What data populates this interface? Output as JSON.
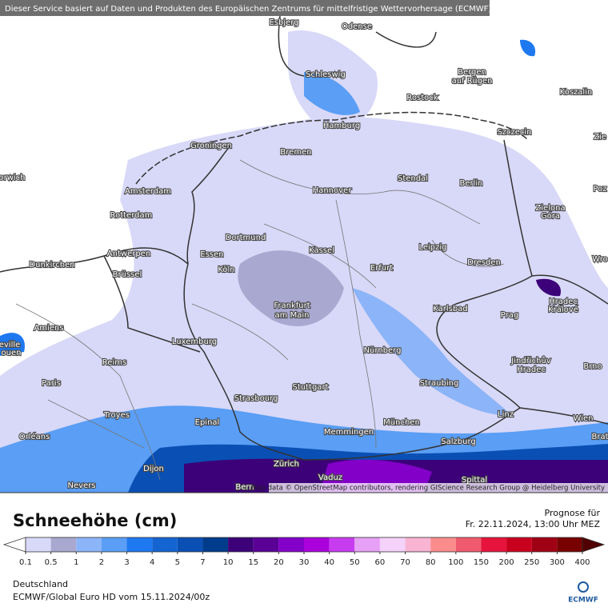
{
  "header": {
    "notice": "Dieser Service basiert auf Daten und Produkten des Europäischen Zentrums für mittelfristige Wettervorhersage (ECMWF)"
  },
  "map": {
    "cities": [
      "Esbjerg",
      "Odense",
      "Schleswig",
      "Bergen",
      "auf Rügen",
      "Koszalin",
      "Rostock",
      "Hamburg",
      "Szczecin",
      "Zie",
      "Groningen",
      "Bremen",
      "orwich",
      "Amsterdam",
      "Stendal",
      "Berlin",
      "Hannover",
      "Poz",
      "Zielona",
      "Góra",
      "Rotterdam",
      "Dortmund",
      "Leipzig",
      "Antwerpen",
      "Essen",
      "Kassel",
      "Erfurt",
      "Dresden",
      "Wro",
      "Dunkirchen",
      "Brüssel",
      "Köln",
      "Hradec",
      "Králové",
      "Frankfurt",
      "am Main",
      "Karlsbad",
      "Prag",
      "Amiens",
      "eville",
      "ouen",
      "Luxemburg",
      "Nürnberg",
      "Jindřichův",
      "Hradec",
      "Brno",
      "Reims",
      "Paris",
      "Stuttgart",
      "Straubing",
      "Strasbourg",
      "Troyes",
      "Epinal",
      "Linz",
      "Wien",
      "Brat",
      "Memmingen",
      "München",
      "Orléans",
      "Salzburg",
      "Dijon",
      "Zürich",
      "Vaduz",
      "Nevers",
      "Bern",
      "Spittal"
    ],
    "attribution": "Map data © OpenStreetMap contributors, rendering GIScience Research Group @ Heidelberg University"
  },
  "legend": {
    "title": "Schneehöhe (cm)",
    "forecast_label": "Prognose für",
    "forecast_time": "Fr. 22.11.2024, 13:00 Uhr MEZ",
    "ticks": [
      0.1,
      0.5,
      1,
      2,
      3,
      4,
      5,
      7,
      10,
      15,
      20,
      30,
      40,
      50,
      60,
      70,
      80,
      100,
      150,
      200,
      250,
      300,
      400
    ],
    "under_color": "#ffffff",
    "colors": [
      "#d8d8f8",
      "#a8a8d0",
      "#8cb4f8",
      "#5a9ef5",
      "#1e78f0",
      "#1464d2",
      "#0a50b4",
      "#003c8c",
      "#3c0078",
      "#5a0096",
      "#8200c8",
      "#aa00dc",
      "#c83cf0",
      "#e6a0f5",
      "#f5d2fa",
      "#f8b4d2",
      "#fa8c8c",
      "#f05a6e",
      "#e6143c",
      "#c8001e",
      "#a00014",
      "#780000"
    ],
    "over_color": "#500000"
  },
  "footer": {
    "region": "Deutschland",
    "model": "ECMWF/Global Euro HD vom  15.11.2024/00z",
    "logo": "ECMWF"
  }
}
